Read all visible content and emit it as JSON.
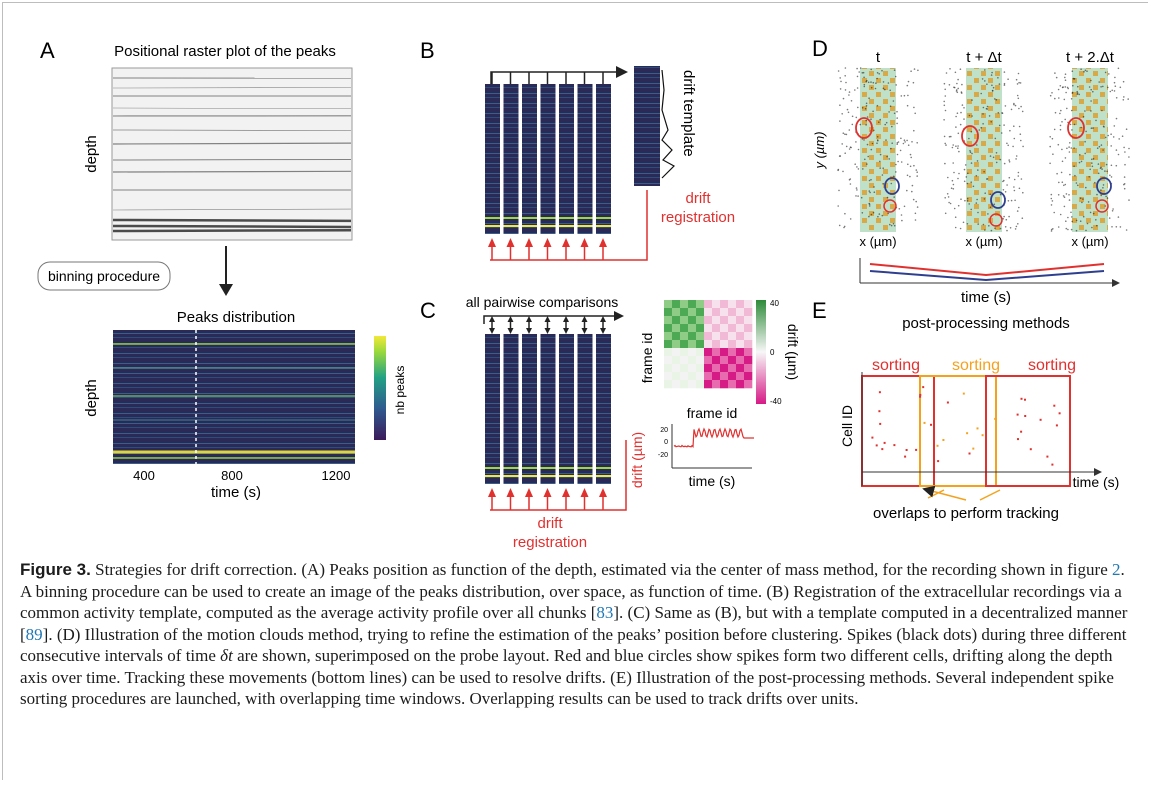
{
  "panels": {
    "A": {
      "label": "A",
      "title": "Positional raster plot of the peaks",
      "ylabel_top": "depth",
      "binning_label": "binning procedure",
      "dist_title": "Peaks distribution",
      "ylabel_bottom": "depth",
      "colorbar_label": "nb peaks",
      "xlabel": "time (s)",
      "x_ticks": [
        "400",
        "800",
        "1200"
      ]
    },
    "B": {
      "label": "B",
      "template_label": "drift template",
      "registration_line1": "drift",
      "registration_line2": "registration"
    },
    "C": {
      "label": "C",
      "comparisons_label": "all pairwise comparisons",
      "matrix_ylabel": "frame id",
      "matrix_xlabel": "frame id",
      "colorbar_label": "drift (µm)",
      "colorbar_max": "40",
      "colorbar_mid": "0",
      "colorbar_min": "-40",
      "trace_ylabel": "drift (µm)",
      "trace_xlabel": "time (s)",
      "trace_ticks": [
        "20",
        "0",
        "-20"
      ],
      "registration_line1": "drift",
      "registration_line2": "registration"
    },
    "D": {
      "label": "D",
      "time_labels": [
        "t",
        "t + Δt",
        "t + 2.Δt"
      ],
      "ylabel": "y (µm)",
      "xlabel": "x (µm)",
      "time_axis_label": "time (s)",
      "methods_label": "post-processing methods"
    },
    "E": {
      "label": "E",
      "sorting_labels": [
        "sorting",
        "sorting",
        "sorting"
      ],
      "ylabel": "Cell ID",
      "xlabel": "time (s)",
      "overlap_label": "overlaps to perform tracking"
    }
  },
  "caption": {
    "label": "Figure 3.",
    "intro": " Strategies for drift correction. (A) Peaks position as function of the depth, estimated via the center of mass method, for the recording shown in figure ",
    "ref_fig": "2",
    "part2": ". A binning procedure can be used to create an image of the peaks distribution, over space, as function of time. (B) Registration of the extracellular recordings via a common activity template, computed as the average activity profile over all chunks [",
    "ref_83": "83",
    "part3": "]. (C) Same as (B), but with a template computed in a decentralized manner [",
    "ref_89": "89",
    "part4": "]. (D) Illustration of the motion clouds method, trying to refine the estimation of the peaks’ position before clustering. Spikes (black dots) during three different consecutive intervals of time ",
    "delta": "δt",
    "part5": " are shown, superimposed on the probe layout. Red and blue circles show spikes form two different cells, drifting along the depth axis over time. Tracking these movements (bottom lines) can be used to resolve drifts. (E) Illustration of the post-processing methods. Several independent spike sorting procedures are launched, with overlapping time windows. Overlapping results can be used to track drifts over units."
  },
  "colors": {
    "red": "#e0312f",
    "orange": "#f4a21e",
    "blue": "#2f3f8f",
    "green": "#2e8b3a",
    "magenta": "#d61a86",
    "viridis_dark": "#2a1a4f",
    "viridis_yellow": "#f3e839"
  }
}
